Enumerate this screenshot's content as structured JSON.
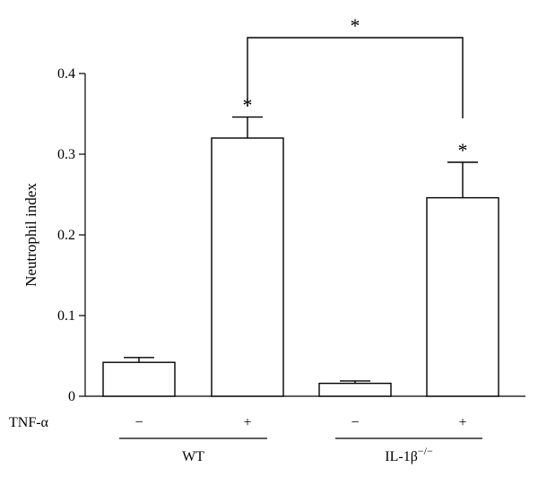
{
  "chart_data": {
    "type": "bar",
    "title": "",
    "ylabel": "Neutrophil index",
    "xlabel": "",
    "ylim": [
      0,
      0.4
    ],
    "yticks": [
      "0",
      "0.1",
      "0.2",
      "0.3",
      "0.4"
    ],
    "ytick_values": [
      0,
      0.1,
      0.2,
      0.3,
      0.4
    ],
    "treatment_label": "TNF-α",
    "categories": [
      "WT −",
      "WT +",
      "IL-1β−/− −",
      "IL-1β−/− +"
    ],
    "treatment_values": [
      "−",
      "+",
      "−",
      "+"
    ],
    "groups": [
      {
        "name": "WT",
        "bars": [
          0,
          1
        ]
      },
      {
        "name": "IL-1β",
        "superscript": "−/−",
        "bars": [
          2,
          3
        ]
      }
    ],
    "values": [
      0.042,
      0.32,
      0.016,
      0.246
    ],
    "errors": [
      0.006,
      0.026,
      0.003,
      0.044
    ],
    "bar_annotations": [
      "",
      "*",
      "",
      "*"
    ],
    "comparison": {
      "between": [
        1,
        3
      ],
      "label": "*"
    },
    "colors": {
      "bar_fill": "#ffffff",
      "stroke": "#000000"
    }
  }
}
